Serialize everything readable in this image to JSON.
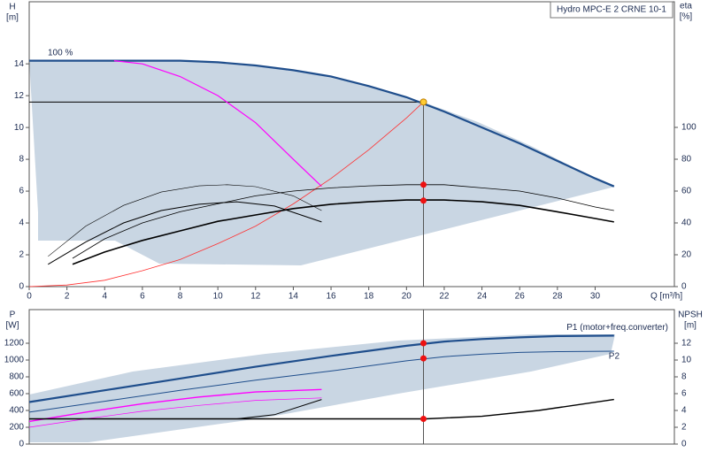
{
  "chart_data": [
    {
      "type": "line",
      "title": "Hydro MPC-E 2 CRNE 10-1",
      "ylabel": "H",
      "yunit": "[m]",
      "y2label": "eta",
      "y2unit": "[%]",
      "xlabel": "Q [m³/h]",
      "annotation": "100 %",
      "xlim": [
        0,
        34.2
      ],
      "xticks": [
        0,
        2,
        4,
        6,
        8,
        10,
        12,
        14,
        16,
        18,
        20,
        22,
        24,
        26,
        28,
        30
      ],
      "ylim": [
        0,
        17.9
      ],
      "yticks": [
        0,
        2,
        4,
        6,
        8,
        10,
        12,
        14
      ],
      "y2lim": [
        0,
        178.9
      ],
      "y2ticks": [
        0,
        20,
        40,
        60,
        80,
        100
      ],
      "grid": false,
      "series": [
        {
          "color": "#1f4e8c",
          "width": 2.2,
          "x": [
            0,
            2,
            4,
            6,
            8,
            10,
            12,
            14,
            16,
            18,
            20,
            22,
            24,
            26,
            28,
            30,
            31
          ],
          "values": [
            14.2,
            14.2,
            14.2,
            14.2,
            14.2,
            14.1,
            13.9,
            13.6,
            13.2,
            12.6,
            11.9,
            11.0,
            10.0,
            9.0,
            7.9,
            6.8,
            6.3
          ]
        },
        {
          "color": "#ff00ff",
          "width": 1.2,
          "x": [
            4.5,
            6,
            8,
            10,
            12,
            14,
            15.5
          ],
          "values": [
            14.2,
            14.0,
            13.2,
            12.0,
            10.3,
            8.0,
            6.3
          ]
        },
        {
          "color": "#ff3030",
          "width": 0.8,
          "x": [
            0,
            2,
            4,
            6,
            8,
            10,
            12,
            14,
            16,
            18,
            20,
            20.9
          ],
          "values": [
            0,
            0.1,
            0.4,
            1.0,
            1.7,
            2.7,
            3.8,
            5.2,
            6.8,
            8.6,
            10.6,
            11.6
          ]
        },
        {
          "color": "#000000",
          "width": 0.8,
          "axis": "y2",
          "x": [
            2.3,
            4,
            6,
            8,
            10,
            12,
            14,
            16,
            18,
            20,
            22,
            24,
            26,
            28,
            30,
            31
          ],
          "values": [
            17.8,
            30,
            40,
            47,
            52,
            57,
            60,
            62,
            63.3,
            64,
            64,
            62,
            60,
            55.6,
            50,
            47.8
          ]
        },
        {
          "color": "#000000",
          "width": 1.6,
          "axis": "y2",
          "x": [
            2.3,
            4,
            6,
            8,
            10,
            12,
            14,
            16,
            18,
            20,
            22,
            24,
            26,
            28,
            30,
            31
          ],
          "values": [
            14,
            21.7,
            29,
            35,
            41,
            45,
            49,
            51.7,
            53.3,
            54.4,
            54.4,
            53.3,
            51,
            47,
            42.8,
            40.6
          ]
        },
        {
          "color": "#000000",
          "width": 0.6,
          "axis": "y2",
          "x": [
            1,
            3,
            5,
            7,
            9,
            10.5,
            12,
            14,
            15.5
          ],
          "values": [
            19,
            38,
            51,
            59.4,
            63.3,
            64,
            62.8,
            57,
            47.8
          ]
        },
        {
          "color": "#000000",
          "width": 1.0,
          "axis": "y2",
          "x": [
            1,
            3,
            5,
            7,
            9,
            11,
            13,
            15.5
          ],
          "values": [
            14,
            28,
            40,
            47.8,
            51.7,
            53.3,
            50.6,
            40.6
          ]
        }
      ],
      "markers": [
        {
          "x": 20.9,
          "y": 11.6,
          "color": "#ffcc33"
        },
        {
          "x": 20.9,
          "y": 64,
          "axis": "y2",
          "color": "#ee1111"
        },
        {
          "x": 20.9,
          "y": 54,
          "axis": "y2",
          "color": "#ee1111"
        }
      ]
    },
    {
      "type": "line",
      "ylabel": "P",
      "yunit": "[W]",
      "y2label": "NPSH",
      "y2unit": "[m]",
      "xlim": [
        0,
        34.2
      ],
      "ylim": [
        0,
        1600
      ],
      "yticks": [
        0,
        200,
        400,
        600,
        800,
        1000,
        1200
      ],
      "y2lim": [
        0,
        16
      ],
      "y2ticks": [
        0,
        2,
        4,
        6,
        8,
        10,
        12
      ],
      "grid": false,
      "series": [
        {
          "name": "P1 (motor+freq.converter)",
          "color": "#1f4e8c",
          "width": 2.2,
          "x": [
            0,
            4,
            8,
            12,
            16,
            20,
            22,
            24,
            26,
            28,
            31
          ],
          "values": [
            500,
            640,
            780,
            920,
            1050,
            1170,
            1220,
            1250,
            1270,
            1285,
            1290
          ]
        },
        {
          "name": "P2",
          "color": "#1f4e8c",
          "width": 1.0,
          "x": [
            0,
            4,
            8,
            12,
            16,
            20,
            22,
            24,
            26,
            28,
            31
          ],
          "values": [
            380,
            510,
            640,
            760,
            870,
            990,
            1040,
            1070,
            1090,
            1100,
            1105
          ]
        },
        {
          "color": "#ff00ff",
          "width": 1.4,
          "x": [
            0,
            3,
            6,
            9,
            12,
            15.5
          ],
          "values": [
            270,
            380,
            480,
            560,
            620,
            650
          ]
        },
        {
          "color": "#ff00ff",
          "width": 0.7,
          "x": [
            0,
            3,
            6,
            9,
            12,
            15.5
          ],
          "values": [
            200,
            300,
            390,
            460,
            520,
            550
          ]
        },
        {
          "color": "#000000",
          "width": 1.4,
          "axis": "y2",
          "x": [
            0,
            21,
            24,
            27,
            31
          ],
          "values": [
            3,
            3,
            3.3,
            4,
            5.3
          ]
        },
        {
          "color": "#000000",
          "width": 1.0,
          "axis": "y2",
          "x": [
            11,
            13,
            15.5
          ],
          "values": [
            3,
            3.5,
            5.3
          ]
        }
      ],
      "markers": [
        {
          "x": 20.9,
          "y": 1200,
          "color": "#ee1111"
        },
        {
          "x": 20.9,
          "y": 1020,
          "color": "#ee1111"
        },
        {
          "x": 20.9,
          "y": 3,
          "axis": "y2",
          "color": "#ee1111"
        }
      ]
    }
  ]
}
